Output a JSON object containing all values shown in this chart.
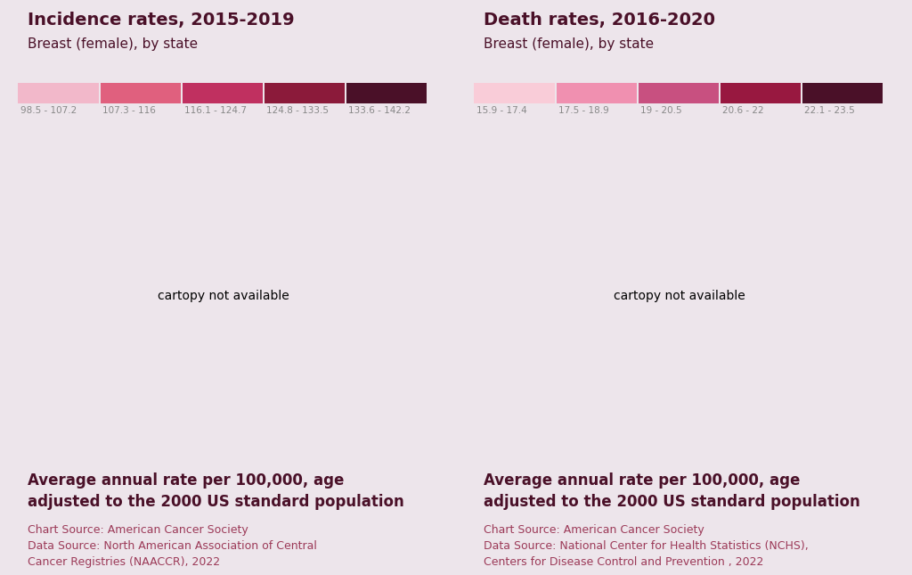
{
  "background_color": "#ede5eb",
  "left_panel": {
    "title": "Incidence rates, 2015-2019",
    "subtitle": "Breast (female), by state",
    "legend_labels": [
      "98.5 - 107.2",
      "107.3 - 116",
      "116.1 - 124.7",
      "124.8 - 133.5",
      "133.6 - 142.2"
    ],
    "legend_colors": [
      "#f2b8ca",
      "#e0607e",
      "#c03060",
      "#8b1a3a",
      "#4a1028"
    ],
    "footer_bold": "Average annual rate per 100,000, age\nadjusted to the 2000 US standard population",
    "footer_source": "Chart Source: American Cancer Society\nData Source: North American Association of Central\nCancer Registries (NAACCR), 2022",
    "state_colors": {
      "Alabama": "#c03060",
      "Alaska": "#e0607e",
      "Arizona": "#e0607e",
      "Arkansas": "#c03060",
      "California": "#e0607e",
      "Colorado": "#8b1a3a",
      "Connecticut": "#8b1a3a",
      "Delaware": "#8b1a3a",
      "Florida": "#e0607e",
      "Georgia": "#c03060",
      "Hawaii": "#f2b8ca",
      "Idaho": "#e0607e",
      "Illinois": "#4a1028",
      "Indiana": "#8b1a3a",
      "Iowa": "#8b1a3a",
      "Kansas": "#c03060",
      "Kentucky": "#c03060",
      "Louisiana": "#c03060",
      "Maine": "#8b1a3a",
      "Maryland": "#c03060",
      "Massachusetts": "#8b1a3a",
      "Michigan": "#8b1a3a",
      "Minnesota": "#4a1028",
      "Mississippi": "#c03060",
      "Missouri": "#c03060",
      "Montana": "#4a1028",
      "Nebraska": "#c03060",
      "Nevada": "#e0607e",
      "New Hampshire": "#8b1a3a",
      "New Jersey": "#8b1a3a",
      "New Mexico": "#e0607e",
      "New York": "#8b1a3a",
      "North Carolina": "#c03060",
      "North Dakota": "#4a1028",
      "Ohio": "#8b1a3a",
      "Oklahoma": "#c03060",
      "Oregon": "#c03060",
      "Pennsylvania": "#8b1a3a",
      "Rhode Island": "#8b1a3a",
      "South Carolina": "#c03060",
      "South Dakota": "#8b1a3a",
      "Tennessee": "#c03060",
      "Texas": "#e0607e",
      "Utah": "#f2b8ca",
      "Vermont": "#8b1a3a",
      "Virginia": "#c03060",
      "Washington": "#8b1a3a",
      "West Virginia": "#4a1028",
      "Wisconsin": "#4a1028",
      "Wyoming": "#e0607e",
      "District of Columbia": "#4a1028"
    }
  },
  "right_panel": {
    "title": "Death rates, 2016-2020",
    "subtitle": "Breast (female), by state",
    "legend_labels": [
      "15.9 - 17.4",
      "17.5 - 18.9",
      "19 - 20.5",
      "20.6 - 22",
      "22.1 - 23.5"
    ],
    "legend_colors": [
      "#f9ccd8",
      "#f090b0",
      "#c85080",
      "#981840",
      "#4a1028"
    ],
    "footer_bold": "Average annual rate per 100,000, age\nadjusted to the 2000 US standard population",
    "footer_source": "Chart Source: American Cancer Society\nData Source: National Center for Health Statistics (NCHS),\nCenters for Disease Control and Prevention , 2022",
    "state_colors": {
      "Alabama": "#981840",
      "Alaska": "#f9ccd8",
      "Arizona": "#f090b0",
      "Arkansas": "#981840",
      "California": "#f090b0",
      "Colorado": "#f9ccd8",
      "Connecticut": "#f090b0",
      "Delaware": "#c85080",
      "Florida": "#f090b0",
      "Georgia": "#981840",
      "Hawaii": "#f9ccd8",
      "Idaho": "#f9ccd8",
      "Illinois": "#c85080",
      "Indiana": "#981840",
      "Iowa": "#f090b0",
      "Kansas": "#f090b0",
      "Kentucky": "#981840",
      "Louisiana": "#4a1028",
      "Maine": "#f090b0",
      "Maryland": "#c85080",
      "Massachusetts": "#f090b0",
      "Michigan": "#c85080",
      "Minnesota": "#f9ccd8",
      "Mississippi": "#4a1028",
      "Missouri": "#981840",
      "Montana": "#f9ccd8",
      "Nebraska": "#f9ccd8",
      "Nevada": "#981840",
      "New Hampshire": "#f090b0",
      "New Jersey": "#c85080",
      "New Mexico": "#f090b0",
      "New York": "#c85080",
      "North Carolina": "#981840",
      "North Dakota": "#f9ccd8",
      "Ohio": "#981840",
      "Oklahoma": "#4a1028",
      "Oregon": "#f090b0",
      "Pennsylvania": "#c85080",
      "Rhode Island": "#c85080",
      "South Carolina": "#981840",
      "South Dakota": "#f9ccd8",
      "Tennessee": "#981840",
      "Texas": "#c85080",
      "Utah": "#f9ccd8",
      "Vermont": "#f090b0",
      "Virginia": "#c85080",
      "Washington": "#c85080",
      "West Virginia": "#981840",
      "Wisconsin": "#f9ccd8",
      "Wyoming": "#f9ccd8",
      "District of Columbia": "#4a1028"
    }
  },
  "title_color": "#4a1028",
  "subtitle_color": "#4a1028",
  "footer_bold_color": "#4a1028",
  "footer_source_color": "#9c3a58",
  "divider_color": "#c0909a",
  "title_fontsize": 14,
  "subtitle_fontsize": 11,
  "footer_bold_fontsize": 12,
  "footer_source_fontsize": 9
}
